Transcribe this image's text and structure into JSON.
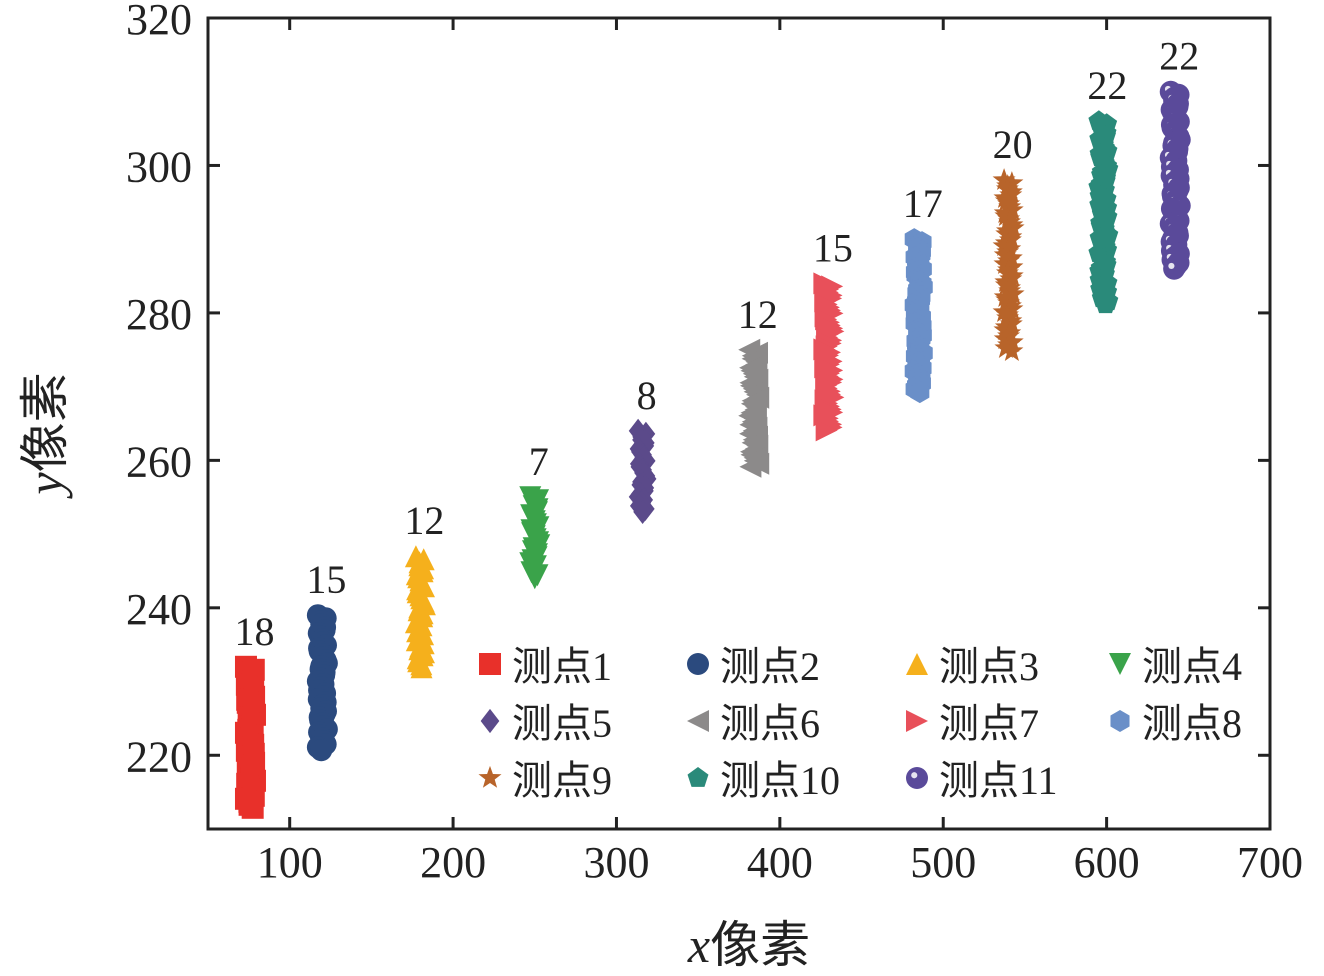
{
  "chart_data": {
    "type": "scatter",
    "xlabel": {
      "var": "x",
      "unit": "像素"
    },
    "ylabel": {
      "var": "y",
      "unit": "像素"
    },
    "xlim": [
      50,
      700
    ],
    "ylim": [
      210,
      320
    ],
    "xticks": [
      100,
      200,
      300,
      400,
      500,
      600,
      700
    ],
    "yticks": [
      220,
      240,
      260,
      280,
      300,
      320
    ],
    "legend_position": "lower-right",
    "series": [
      {
        "name": "测点1",
        "marker": "square",
        "color": "#e8302a",
        "x": 76,
        "y_min": 213,
        "y_max": 232,
        "label": "18"
      },
      {
        "name": "测点2",
        "marker": "circle",
        "color": "#2b4a7e",
        "x": 120,
        "y_min": 221,
        "y_max": 239,
        "label": "15"
      },
      {
        "name": "测点3",
        "marker": "triangle-up",
        "color": "#f5b01c",
        "x": 180,
        "y_min": 232,
        "y_max": 247,
        "label": "12"
      },
      {
        "name": "测点4",
        "marker": "triangle-down",
        "color": "#3aa34a",
        "x": 250,
        "y_min": 244,
        "y_max": 255,
        "label": "7"
      },
      {
        "name": "测点5",
        "marker": "diamond",
        "color": "#5b4a8a",
        "x": 316,
        "y_min": 253,
        "y_max": 264,
        "label": "8"
      },
      {
        "name": "测点6",
        "marker": "triangle-left",
        "color": "#8c8a8a",
        "x": 384,
        "y_min": 259,
        "y_max": 275,
        "label": "12"
      },
      {
        "name": "测点7",
        "marker": "triangle-right",
        "color": "#e8505a",
        "x": 430,
        "y_min": 264,
        "y_max": 284,
        "label": "15"
      },
      {
        "name": "测点8",
        "marker": "hexagon",
        "color": "#6a8fc8",
        "x": 485,
        "y_min": 269,
        "y_max": 290,
        "label": "17"
      },
      {
        "name": "测点9",
        "marker": "star",
        "color": "#b8642a",
        "x": 540,
        "y_min": 275,
        "y_max": 298,
        "label": "20"
      },
      {
        "name": "测点10",
        "marker": "pentagon",
        "color": "#2a8a7a",
        "x": 598,
        "y_min": 281,
        "y_max": 306,
        "label": "22"
      },
      {
        "name": "测点11",
        "marker": "circle-dot",
        "color": "#5a4a9a",
        "x": 642,
        "y_min": 286,
        "y_max": 310,
        "label": "22"
      }
    ]
  }
}
